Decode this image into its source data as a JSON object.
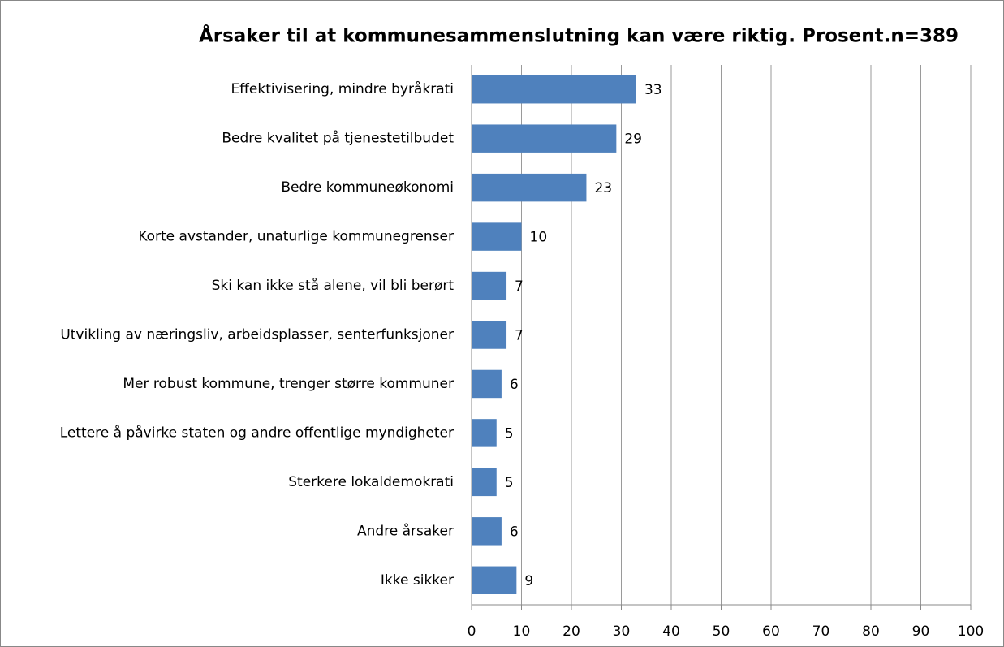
{
  "chart_data": {
    "type": "bar",
    "orientation": "horizontal",
    "title": "Årsaker til at kommunesammenslutning kan være riktig. Prosent.n=389",
    "categories": [
      "Effektivisering, mindre byråkrati",
      "Bedre kvalitet på tjenestetilbudet",
      "Bedre kommuneøkonomi",
      "Korte avstander, unaturlige kommunegrenser",
      "Ski kan ikke stå alene, vil bli berørt",
      "Utvikling av næringsliv, arbeidsplasser, senterfunksjoner",
      "Mer robust kommune, trenger større kommuner",
      "Lettere å påvirke staten og andre offentlige myndigheter",
      "Sterkere lokaldemokrati",
      "Andre årsaker",
      "Ikke sikker"
    ],
    "values": [
      33,
      29,
      23,
      10,
      7,
      7,
      6,
      5,
      5,
      6,
      9
    ],
    "color": "#4f81bd",
    "xlim": [
      0,
      100
    ],
    "xticks": [
      0,
      10,
      20,
      30,
      40,
      50,
      60,
      70,
      80,
      90,
      100
    ],
    "grid": true
  }
}
